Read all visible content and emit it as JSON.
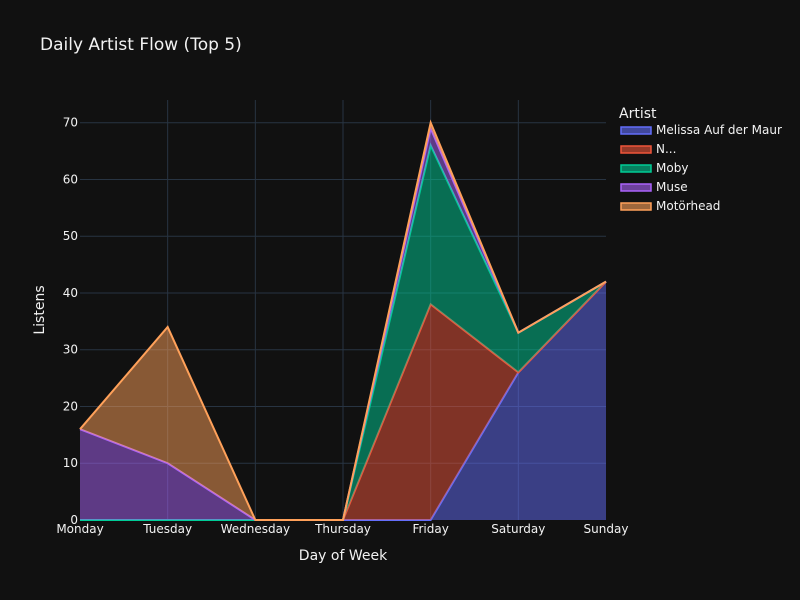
{
  "chart_data": {
    "type": "area",
    "title": "Daily Artist Flow (Top 5)",
    "xlabel": "Day of Week",
    "ylabel": "Listens",
    "ylim": [
      0,
      74
    ],
    "yticks": [
      0,
      10,
      20,
      30,
      40,
      50,
      60,
      70
    ],
    "grid": true,
    "stacked": true,
    "legend": {
      "title": "Artist",
      "placement": "right"
    },
    "categories": [
      "Monday",
      "Tuesday",
      "Wednesday",
      "Thursday",
      "Friday",
      "Saturday",
      "Sunday"
    ],
    "series": [
      {
        "name": "Melissa Auf der Maur",
        "values": [
          0,
          0,
          0,
          0,
          0,
          26,
          42
        ],
        "color": "#636efa"
      },
      {
        "name": "N...",
        "values": [
          0,
          0,
          0,
          0,
          38,
          0,
          0
        ],
        "color": "#ef553b"
      },
      {
        "name": "Moby",
        "values": [
          0,
          0,
          0,
          0,
          28,
          7,
          0
        ],
        "color": "#00cc96"
      },
      {
        "name": "Muse",
        "values": [
          16,
          10,
          0,
          0,
          3,
          0,
          0
        ],
        "color": "#ab63fa"
      },
      {
        "name": "Motörhead",
        "values": [
          0,
          24,
          0,
          0,
          1,
          0,
          0
        ],
        "color": "#ffa15a"
      }
    ]
  }
}
